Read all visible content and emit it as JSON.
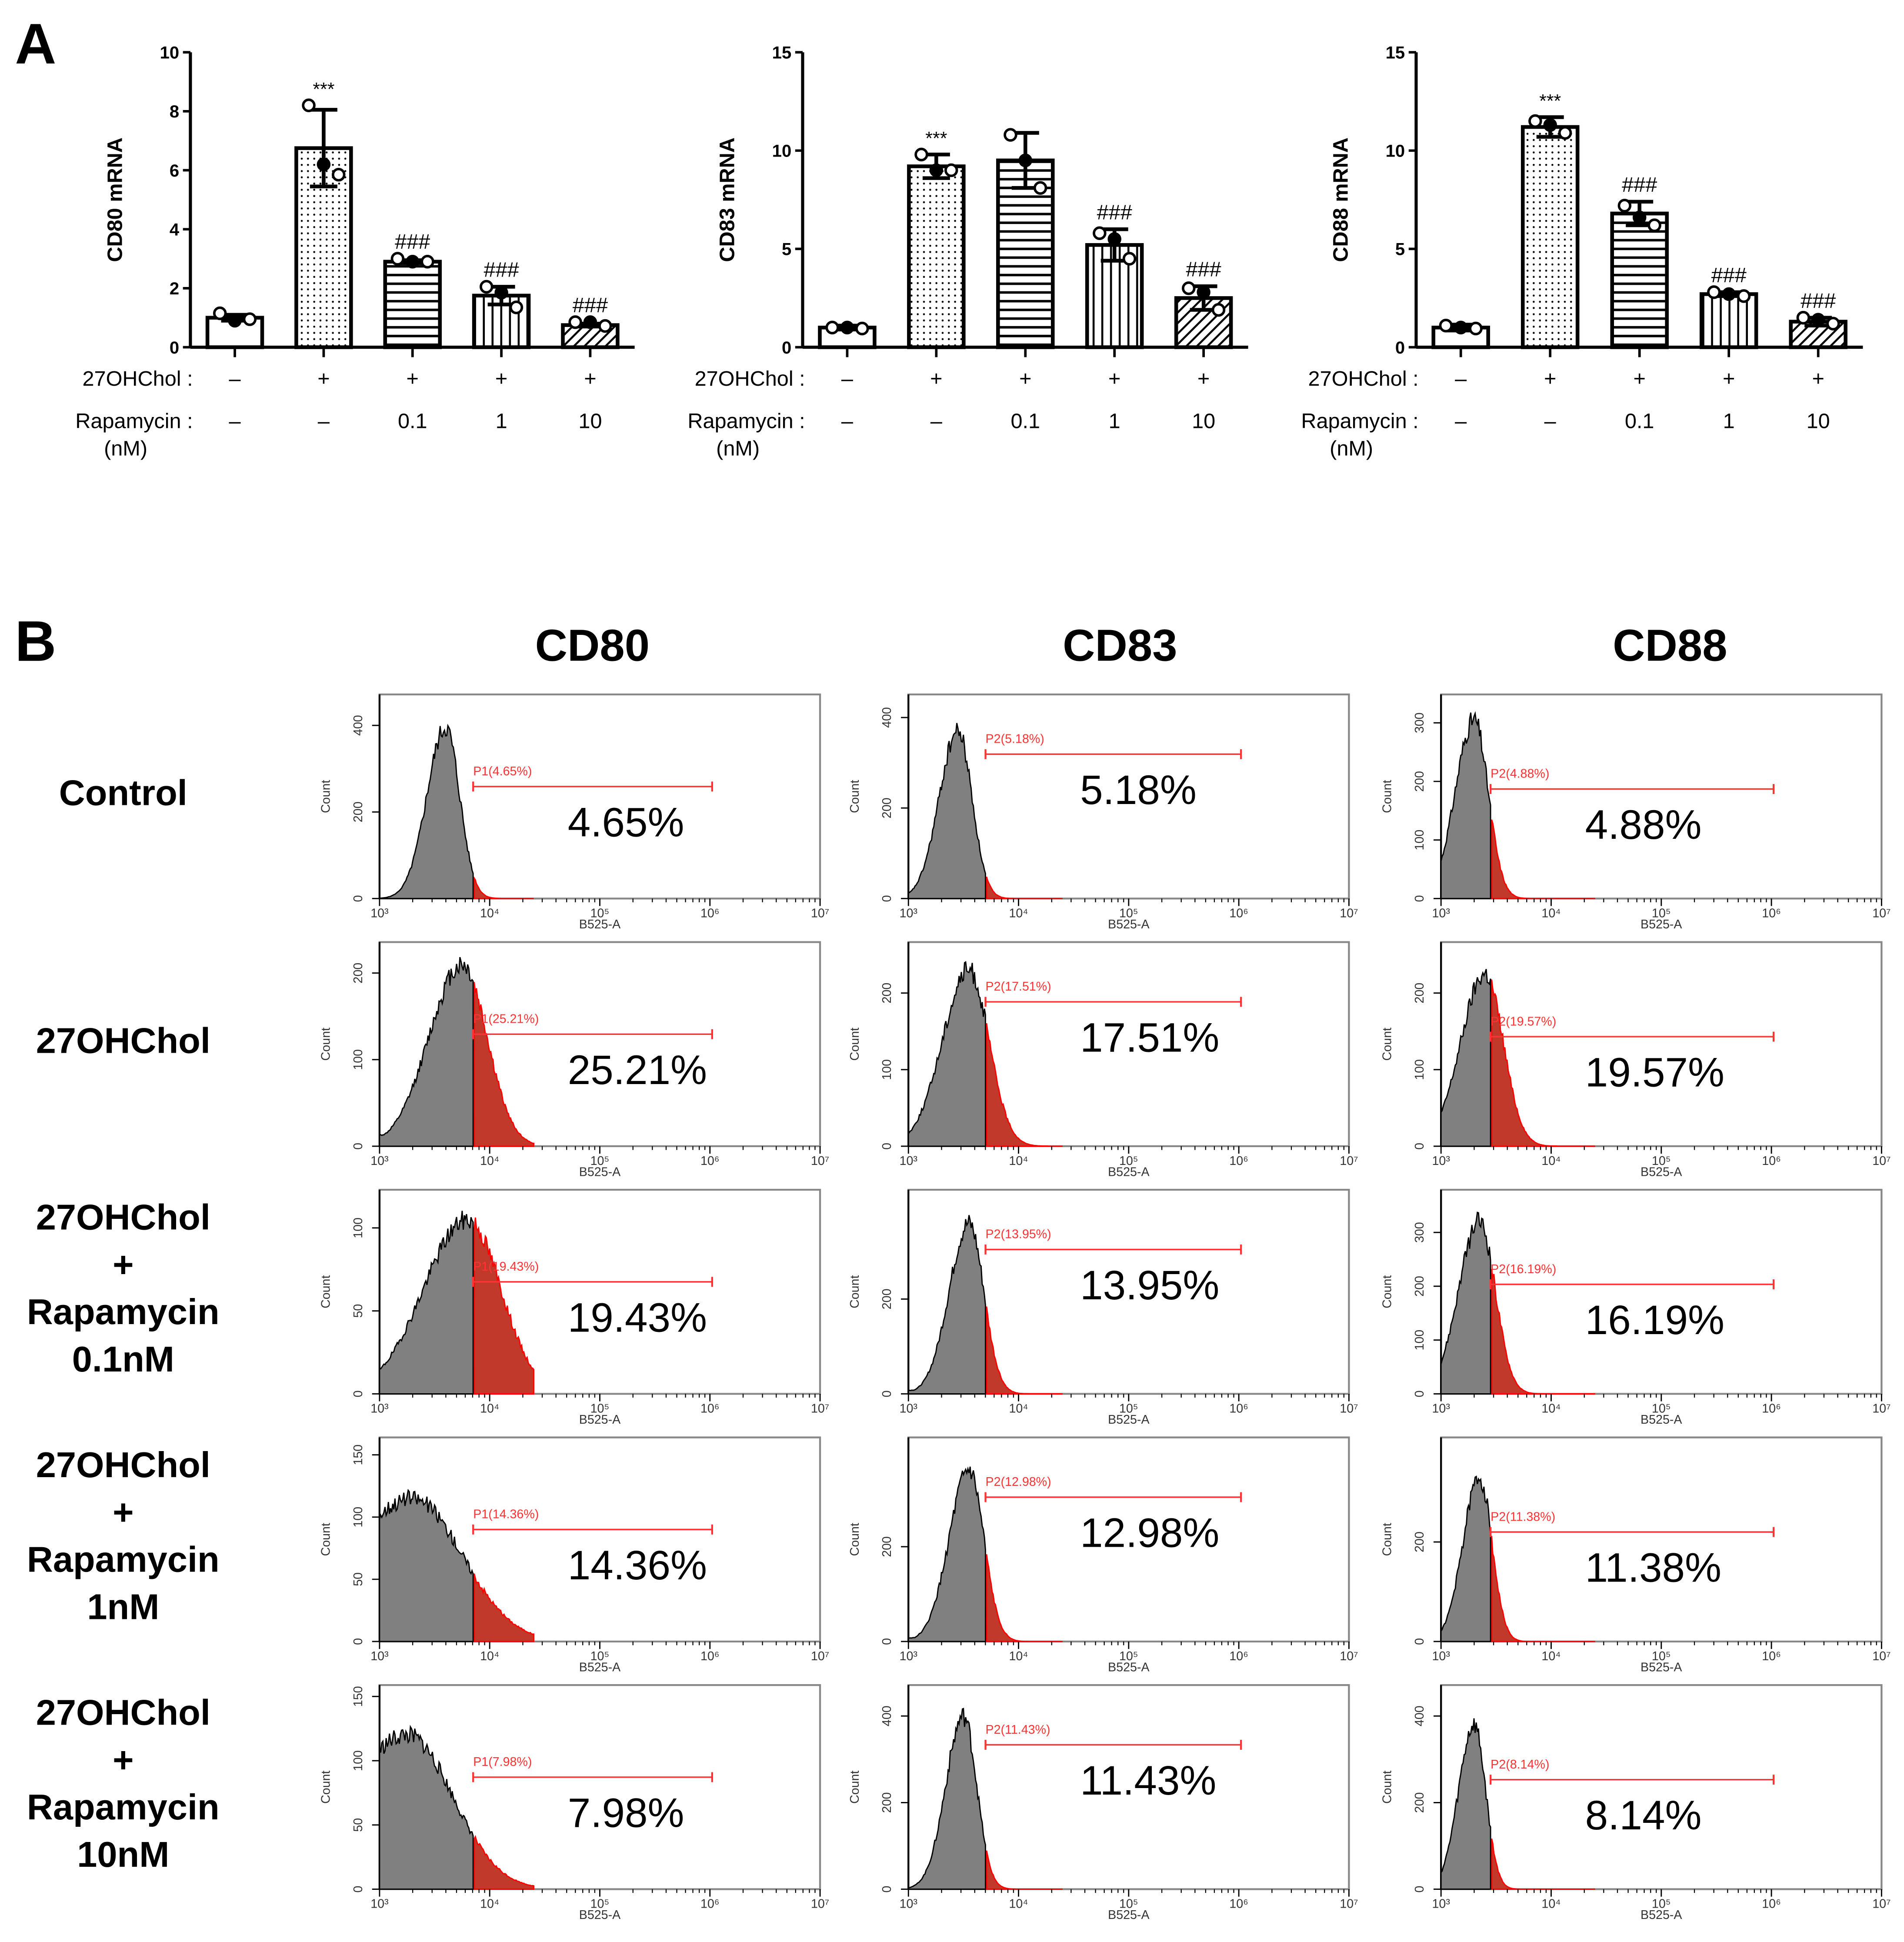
{
  "panel_a_label": "A",
  "panel_b_label": "B",
  "chart_data": [
    {
      "type": "bar",
      "title": "",
      "ylabel": "CD80 mRNA",
      "ylim": [
        0,
        10
      ],
      "yticks": [
        0,
        2,
        4,
        6,
        8,
        10
      ],
      "row_labels": {
        "treatment": "27OHChol :",
        "rapamycin": "Rapamycin :",
        "rapamycin_unit": "(nM)"
      },
      "categories_27OHChol": [
        "–",
        "+",
        "+",
        "+",
        "+"
      ],
      "categories_rapamycin": [
        "–",
        "–",
        "0.1",
        "1",
        "10"
      ],
      "values": [
        1.0,
        6.75,
        2.9,
        1.75,
        0.75
      ],
      "errors": [
        0.1,
        1.3,
        0.05,
        0.3,
        0.05
      ],
      "points": [
        [
          1.15,
          0.9,
          0.95
        ],
        [
          8.2,
          6.2,
          5.85
        ],
        [
          3.0,
          2.9,
          2.9
        ],
        [
          2.05,
          1.85,
          1.35
        ],
        [
          0.85,
          0.85,
          0.72
        ]
      ],
      "significance": [
        "",
        "***",
        "###",
        "###",
        "###"
      ],
      "patterns": [
        "none",
        "dots",
        "horizontal",
        "vertical",
        "diagonal"
      ]
    },
    {
      "type": "bar",
      "title": "",
      "ylabel": "CD83 mRNA",
      "ylim": [
        0,
        15
      ],
      "yticks": [
        0,
        5,
        10,
        15
      ],
      "row_labels": {
        "treatment": "27OHChol :",
        "rapamycin": "Rapamycin :",
        "rapamycin_unit": "(nM)"
      },
      "categories_27OHChol": [
        "–",
        "+",
        "+",
        "+",
        "+"
      ],
      "categories_rapamycin": [
        "–",
        "–",
        "0.1",
        "1",
        "10"
      ],
      "values": [
        1.0,
        9.2,
        9.5,
        5.2,
        2.5
      ],
      "errors": [
        0.1,
        0.6,
        1.4,
        0.8,
        0.6
      ],
      "points": [
        [
          1.0,
          1.0,
          0.95
        ],
        [
          9.8,
          9.0,
          9.0
        ],
        [
          10.8,
          9.5,
          8.1
        ],
        [
          5.8,
          5.5,
          4.5
        ],
        [
          3.0,
          2.8,
          1.9
        ]
      ],
      "significance": [
        "",
        "***",
        "",
        "###",
        "###"
      ],
      "patterns": [
        "none",
        "dots",
        "horizontal",
        "vertical",
        "diagonal"
      ]
    },
    {
      "type": "bar",
      "title": "",
      "ylabel": "CD88 mRNA",
      "ylim": [
        0,
        15
      ],
      "yticks": [
        0,
        5,
        10,
        15
      ],
      "row_labels": {
        "treatment": "27OHChol :",
        "rapamycin": "Rapamycin :",
        "rapamycin_unit": "(nM)"
      },
      "categories_27OHChol": [
        "–",
        "+",
        "+",
        "+",
        "+"
      ],
      "categories_rapamycin": [
        "–",
        "–",
        "0.1",
        "1",
        "10"
      ],
      "values": [
        1.0,
        11.2,
        6.8,
        2.7,
        1.3
      ],
      "errors": [
        0.15,
        0.5,
        0.6,
        0.1,
        0.2
      ],
      "points": [
        [
          1.1,
          1.0,
          0.95
        ],
        [
          11.5,
          11.3,
          10.9
        ],
        [
          7.2,
          6.6,
          6.2
        ],
        [
          2.8,
          2.7,
          2.6
        ],
        [
          1.5,
          1.4,
          1.2
        ]
      ],
      "significance": [
        "",
        "***",
        "###",
        "###",
        "###"
      ],
      "patterns": [
        "none",
        "dots",
        "horizontal",
        "vertical",
        "diagonal"
      ]
    }
  ],
  "flow": {
    "columns": [
      "CD80",
      "CD83",
      "CD88"
    ],
    "rows": [
      {
        "lines": [
          "Control"
        ]
      },
      {
        "lines": [
          "27OHChol"
        ]
      },
      {
        "lines": [
          "27OHChol",
          "+",
          "Rapamycin",
          "0.1nM"
        ]
      },
      {
        "lines": [
          "27OHChol",
          "+",
          "Rapamycin",
          "1nM"
        ]
      },
      {
        "lines": [
          "27OHChol",
          "+",
          "Rapamycin",
          "10nM"
        ]
      }
    ],
    "x_label": "B525-A",
    "y_label": "Count",
    "x_ticks": [
      "10³",
      "10⁴",
      "10⁵",
      "10⁶",
      "10⁷"
    ],
    "gate_color": "#ff3333",
    "fill_color": "#808080",
    "positive_fill": "#c0392b",
    "panels": [
      [
        {
          "gate": "P1(4.65%)",
          "pct": "4.65%",
          "yticks": [
            "0",
            "200",
            "400"
          ],
          "peak_log": 3.6,
          "gate_log": 3.85,
          "width": 0.17,
          "ymax": 460,
          "peak": 395,
          "left": 0
        },
        {
          "gate": "P2(5.18%)",
          "pct": "5.18%",
          "yticks": [
            "0",
            "200",
            "400"
          ],
          "peak_log": 3.45,
          "gate_log": 3.7,
          "width": 0.17,
          "ymax": 440,
          "peak": 370,
          "left": 0
        },
        {
          "gate": "P2(4.88%)",
          "pct": "4.88%",
          "yticks": [
            "0",
            "100",
            "200",
            "300"
          ],
          "peak_log": 3.3,
          "gate_log": 3.45,
          "width": 0.17,
          "ymax": 340,
          "peak": 305,
          "left": 0
        }
      ],
      [
        {
          "gate": "P1(25.21%)",
          "pct": "25.21%",
          "yticks": [
            "0",
            "100",
            "200"
          ],
          "peak_log": 3.75,
          "gate_log": 3.85,
          "width": 0.3,
          "ymax": 230,
          "peak": 210,
          "left": 0.15
        },
        {
          "gate": "P2(17.51%)",
          "pct": "17.51%",
          "yticks": [
            "0",
            "100",
            "200"
          ],
          "peak_log": 3.55,
          "gate_log": 3.7,
          "width": 0.24,
          "ymax": 260,
          "peak": 230,
          "left": 0.05
        },
        {
          "gate": "P2(19.57%)",
          "pct": "19.57%",
          "yticks": [
            "0",
            "100",
            "200"
          ],
          "peak_log": 3.4,
          "gate_log": 3.45,
          "width": 0.22,
          "ymax": 260,
          "peak": 225,
          "left": 0.05
        }
      ],
      [
        {
          "gate": "P1(19.43%)",
          "pct": "19.43%",
          "yticks": [
            "0",
            "50",
            "100"
          ],
          "peak_log": 3.8,
          "gate_log": 3.85,
          "width": 0.4,
          "ymax": 120,
          "peak": 105,
          "left": 0.3
        },
        {
          "gate": "P2(13.95%)",
          "pct": "13.95%",
          "yticks": [
            "0",
            "200"
          ],
          "peak_log": 3.55,
          "gate_log": 3.7,
          "width": 0.18,
          "ymax": 420,
          "peak": 360,
          "left": 0.05
        },
        {
          "gate": "P2(16.19%)",
          "pct": "16.19%",
          "yticks": [
            "0",
            "100",
            "200",
            "300"
          ],
          "peak_log": 3.35,
          "gate_log": 3.45,
          "width": 0.19,
          "ymax": 370,
          "peak": 320,
          "left": 0.02
        }
      ],
      [
        {
          "gate": "P1(14.36%)",
          "pct": "14.36%",
          "yticks": [
            "0",
            "50",
            "100",
            "150"
          ],
          "peak_log": 3.3,
          "gate_log": 3.85,
          "width": 0.6,
          "ymax": 160,
          "peak": 115,
          "left": 0.6
        },
        {
          "gate": "P2(12.98%)",
          "pct": "12.98%",
          "yticks": [
            "0",
            "200"
          ],
          "peak_log": 3.55,
          "gate_log": 3.7,
          "width": 0.18,
          "ymax": 420,
          "peak": 360,
          "left": 0.05
        },
        {
          "gate": "P2(11.38%)",
          "pct": "11.38%",
          "yticks": [
            "0",
            "200"
          ],
          "peak_log": 3.35,
          "gate_log": 3.45,
          "width": 0.15,
          "ymax": 400,
          "peak": 330,
          "left": 0.02
        }
      ],
      [
        {
          "gate": "P1(7.98%)",
          "pct": "7.98%",
          "yticks": [
            "0",
            "50",
            "100",
            "150"
          ],
          "peak_log": 3.25,
          "gate_log": 3.85,
          "width": 0.55,
          "ymax": 155,
          "peak": 120,
          "left": 0.7
        },
        {
          "gate": "P2(11.43%)",
          "pct": "11.43%",
          "yticks": [
            "0",
            "200",
            "400"
          ],
          "peak_log": 3.5,
          "gate_log": 3.7,
          "width": 0.16,
          "ymax": 460,
          "peak": 400,
          "left": 0.02
        },
        {
          "gate": "P2(8.14%)",
          "pct": "8.14%",
          "yticks": [
            "0",
            "200",
            "400"
          ],
          "peak_log": 3.3,
          "gate_log": 3.45,
          "width": 0.14,
          "ymax": 460,
          "peak": 380,
          "left": 0.02
        }
      ]
    ]
  }
}
